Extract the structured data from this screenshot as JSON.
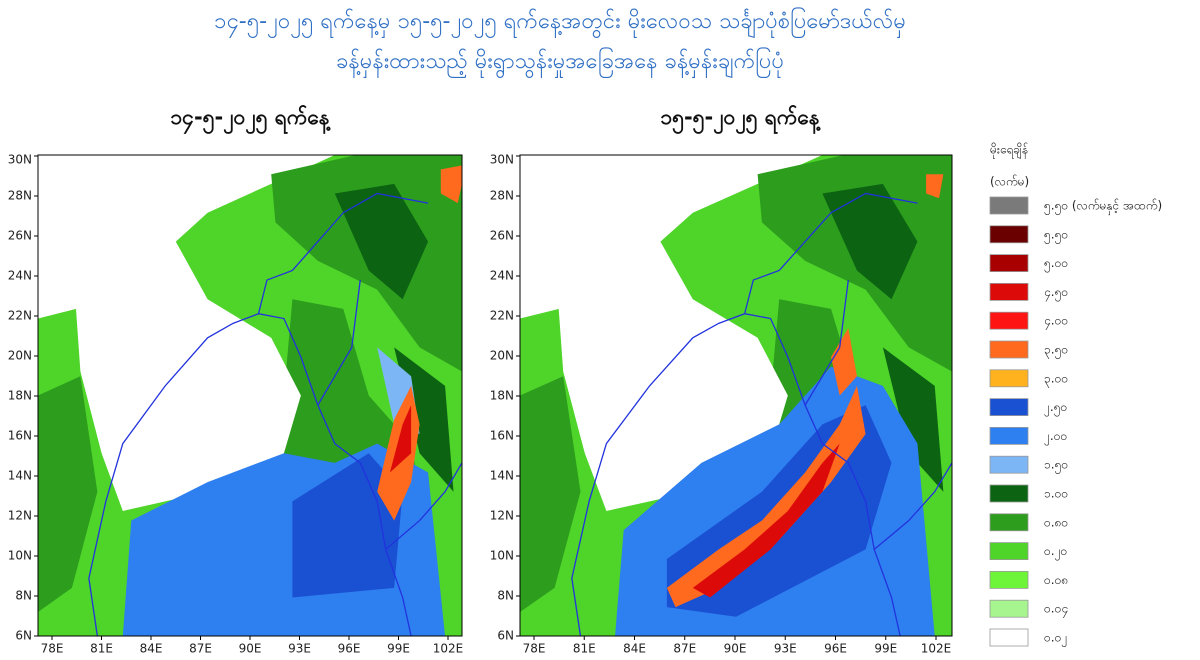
{
  "header": {
    "title_line1": "၁၄-၅-၂၀၂၅ ရက်နေ့မှ ၁၅-၅-၂၀၂၅ ရက်နေ့အတွင်း မိုးလေဝသ သင်္ချာပုံစံပြမော်ဒယ်လ်မှ",
    "title_line2": "ခန့်မှန်းထားသည့် မိုးရွာသွန်းမှုအခြေအနေ ခန့်မှန်းချက်ပြပုံ"
  },
  "maps": [
    {
      "title": "၁၄-၅-၂၀၂၅ ရက်နေ့",
      "xticks": [
        "78E",
        "81E",
        "84E",
        "87E",
        "90E",
        "93E",
        "96E",
        "99E",
        "102E"
      ],
      "yticks": [
        "6N",
        "8N",
        "10N",
        "12N",
        "14N",
        "16N",
        "18N",
        "20N",
        "22N",
        "24N",
        "26N",
        "28N",
        "30N"
      ]
    },
    {
      "title": "၁၅-၅-၂၀၂၅ ရက်နေ့",
      "xticks": [
        "78E",
        "81E",
        "84E",
        "87E",
        "90E",
        "93E",
        "96E",
        "99E",
        "102E"
      ],
      "yticks": [
        "6N",
        "8N",
        "10N",
        "12N",
        "14N",
        "16N",
        "18N",
        "20N",
        "22N",
        "24N",
        "26N",
        "28N",
        "30N"
      ]
    }
  ],
  "legend": {
    "title": "မိုးရေချိန်",
    "unit": "(လက်မ)",
    "items": [
      {
        "label": "၅.၅၀ (လက်မနှင့် အထက်)",
        "color": "#7a7a7a"
      },
      {
        "label": "၅.၅၀",
        "color": "#6a0000"
      },
      {
        "label": "၅.၀၀",
        "color": "#a80000"
      },
      {
        "label": "၄.၅၀",
        "color": "#dd0a0a"
      },
      {
        "label": "၄.၀၀",
        "color": "#ff1414"
      },
      {
        "label": "၃.၅၀",
        "color": "#ff6a1e"
      },
      {
        "label": "၃.၀၀",
        "color": "#ffb21e"
      },
      {
        "label": "၂.၅၀",
        "color": "#1a50d2"
      },
      {
        "label": "၂.၀၀",
        "color": "#2e7ff0"
      },
      {
        "label": "၁.၅၀",
        "color": "#7db6f5"
      },
      {
        "label": "၁.၀၀",
        "color": "#0c6412"
      },
      {
        "label": "၀.၈၀",
        "color": "#2c9d1c"
      },
      {
        "label": "၀.၂၀",
        "color": "#4fd42a"
      },
      {
        "label": "၀.၀၈",
        "color": "#6ef53a"
      },
      {
        "label": "၀.၀၄",
        "color": "#a6f58e"
      },
      {
        "label": "၀.၀၂",
        "color": "#ffffff"
      }
    ]
  }
}
